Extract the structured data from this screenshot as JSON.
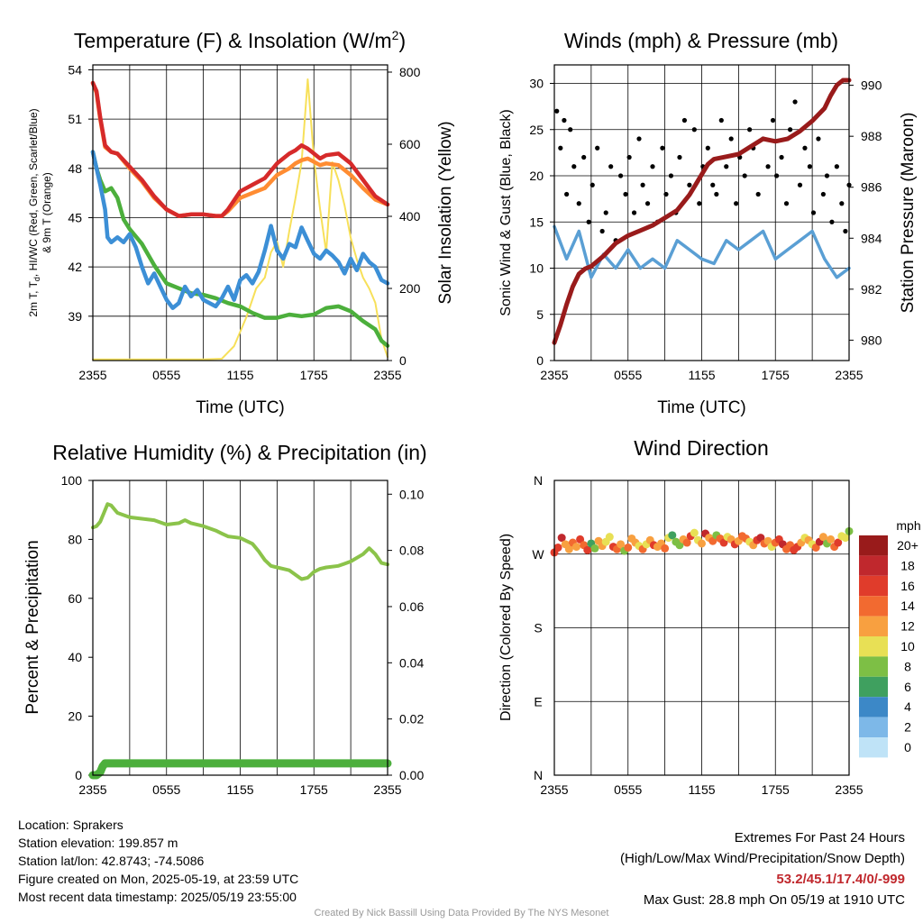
{
  "chart_data": [
    {
      "id": "temperature",
      "type": "line",
      "title": "Temperature (F) & Insolation (W/m",
      "title_sup": "2",
      "title_close": ")",
      "xlabel": "Time (UTC)",
      "ylabel_lines": [
        "2m T, T",
        "d",
        ", HI/WC (Red, Green, Scarlet/Blue)",
        "& 9m T (Orange)"
      ],
      "y2label": "Solar Insolation (Yellow)",
      "x_ticks": [
        "2355",
        "0555",
        "1155",
        "1755",
        "2355"
      ],
      "y_ticks": [
        39,
        42,
        45,
        48,
        51,
        54
      ],
      "y2_ticks": [
        0,
        200,
        400,
        600,
        800
      ],
      "ylim": [
        36.3,
        54.3
      ],
      "y2lim": [
        0,
        820
      ],
      "grid": true,
      "series": [
        {
          "color": "#f7e05a",
          "axis": "right",
          "x": [
            0,
            3,
            6,
            9,
            10.5,
            11.5,
            12.5,
            13.3,
            14,
            14.5,
            15,
            15.5,
            16,
            16.5,
            17,
            17.5,
            18,
            18.5,
            19,
            19.5,
            20,
            20.5,
            21,
            21.5,
            22,
            22.5,
            23,
            23.5,
            24
          ],
          "y": [
            3,
            3,
            3,
            3,
            5,
            40,
            120,
            200,
            230,
            300,
            330,
            260,
            360,
            450,
            550,
            780,
            560,
            420,
            300,
            550,
            500,
            430,
            340,
            280,
            230,
            200,
            160,
            60,
            10
          ]
        },
        {
          "color": "#ff8c32",
          "axis": "left",
          "x": [
            0,
            0.3,
            0.6,
            1,
            1.5,
            2,
            3,
            4,
            5,
            6,
            7,
            8,
            9,
            10,
            10.5,
            11,
            12,
            13,
            14,
            15,
            16,
            16.5,
            17,
            17.5,
            18,
            18.5,
            19,
            20,
            21,
            22,
            23,
            24
          ],
          "y": [
            53.2,
            52.6,
            51.0,
            49.3,
            49.0,
            48.9,
            48.0,
            47.2,
            46.2,
            45.5,
            45.1,
            45.2,
            45.2,
            45.1,
            45.1,
            45.4,
            46.2,
            46.5,
            46.8,
            47.6,
            48.0,
            48.3,
            48.5,
            48.6,
            48.4,
            48.2,
            48.3,
            48.2,
            47.6,
            46.8,
            46.1,
            45.8
          ]
        },
        {
          "color": "#d62a2a",
          "axis": "left",
          "x": [
            0,
            0.3,
            0.6,
            1,
            1.5,
            2,
            3,
            4,
            5,
            6,
            7,
            8,
            9,
            10,
            10.5,
            11,
            12,
            13,
            14,
            15,
            16,
            16.5,
            17,
            17.5,
            18,
            18.5,
            19,
            20,
            21,
            22,
            23,
            24
          ],
          "y": [
            53.2,
            52.7,
            51.1,
            49.4,
            49.0,
            48.9,
            48.1,
            47.3,
            46.3,
            45.5,
            45.1,
            45.2,
            45.2,
            45.1,
            45.1,
            45.5,
            46.6,
            47.0,
            47.4,
            48.3,
            48.9,
            49.1,
            49.4,
            49.2,
            48.9,
            48.6,
            48.8,
            48.9,
            48.3,
            47.3,
            46.3,
            45.8
          ]
        },
        {
          "color": "#4caf3c",
          "axis": "left",
          "x": [
            0,
            0.3,
            0.6,
            1,
            1.5,
            2,
            2.5,
            3,
            4,
            5,
            6,
            7,
            8,
            9,
            10,
            11,
            12,
            13,
            14,
            15,
            16,
            17,
            18,
            19,
            20,
            21,
            22,
            23,
            23.5,
            24
          ],
          "y": [
            49.0,
            48.0,
            47.3,
            46.6,
            46.8,
            46.2,
            44.9,
            44.3,
            43.4,
            42.1,
            41.0,
            40.7,
            40.4,
            40.3,
            40.1,
            39.8,
            39.6,
            39.2,
            38.9,
            38.9,
            39.1,
            39.0,
            39.1,
            39.5,
            39.6,
            39.3,
            38.7,
            38.2,
            37.5,
            37.2
          ]
        },
        {
          "color": "#3c8fd6",
          "axis": "left",
          "x": [
            0,
            0.3,
            0.6,
            1,
            1.2,
            1.5,
            2,
            2.5,
            3,
            3.5,
            4,
            4.5,
            5,
            5.5,
            6,
            6.5,
            7,
            7.5,
            8,
            8.5,
            9,
            9.5,
            10,
            10.5,
            11,
            11.5,
            12,
            12.5,
            13,
            13.5,
            14,
            14.5,
            15,
            15.5,
            16,
            16.5,
            17,
            17.5,
            18,
            18.5,
            19,
            19.5,
            20,
            20.5,
            21,
            21.5,
            22,
            22.5,
            23,
            23.5,
            24
          ],
          "y": [
            49.0,
            48.0,
            47.0,
            45.5,
            43.8,
            43.5,
            43.8,
            43.5,
            44.0,
            43.2,
            42.0,
            41.0,
            41.6,
            40.8,
            40.0,
            39.5,
            39.8,
            40.8,
            40.2,
            40.6,
            40.0,
            39.8,
            39.6,
            40.1,
            40.8,
            40.0,
            41.2,
            41.5,
            41.0,
            41.7,
            43.0,
            44.5,
            43.0,
            42.5,
            43.4,
            43.2,
            44.4,
            43.6,
            42.8,
            42.5,
            43.0,
            42.7,
            42.3,
            41.6,
            42.5,
            41.8,
            42.8,
            42.3,
            42.0,
            41.2,
            41.0
          ]
        }
      ]
    },
    {
      "id": "winds",
      "type": "line",
      "title": "Winds (mph) & Pressure (mb)",
      "xlabel": "Time (UTC)",
      "ylabel": "Sonic Wind & Gust (Blue, Black)",
      "y2label": "Station Pressure (Maroon)",
      "x_ticks": [
        "2355",
        "0555",
        "1155",
        "1755",
        "2355"
      ],
      "y_ticks": [
        0,
        5,
        10,
        15,
        20,
        25,
        30
      ],
      "y2_ticks": [
        980,
        982,
        984,
        986,
        988,
        990
      ],
      "ylim": [
        0,
        32
      ],
      "y2lim": [
        979.2,
        990.8
      ],
      "grid": true,
      "series": [
        {
          "color": "#5a9fd4",
          "axis": "left",
          "x": [
            0,
            1,
            2,
            3,
            4,
            5,
            6,
            7,
            8,
            9,
            10,
            11,
            12,
            13,
            14,
            15,
            16,
            17,
            18,
            19,
            20,
            21,
            22,
            23,
            24
          ],
          "y": [
            14.5,
            11,
            14,
            9,
            11.5,
            10,
            12,
            10,
            11,
            10,
            13,
            12,
            11,
            10.5,
            13,
            12,
            13,
            14,
            11,
            12,
            13,
            14,
            11,
            9,
            10
          ]
        },
        {
          "color": "#991b1b",
          "axis": "right",
          "x": [
            0,
            0.5,
            1,
            1.5,
            2,
            2.5,
            3,
            4,
            5,
            6,
            7,
            8,
            9,
            10,
            11,
            11.5,
            12,
            12.5,
            13,
            14,
            15,
            16,
            17,
            18,
            19,
            20,
            21,
            22,
            22.5,
            23,
            23.5,
            24
          ],
          "y": [
            979.9,
            980.6,
            981.4,
            982.1,
            982.6,
            982.8,
            982.9,
            983.3,
            983.8,
            984.1,
            984.3,
            984.5,
            984.8,
            985.1,
            985.7,
            986.1,
            986.5,
            986.9,
            987.1,
            987.2,
            987.3,
            987.6,
            987.9,
            987.8,
            987.9,
            988.2,
            988.6,
            989.1,
            989.6,
            990.0,
            990.2,
            990.2
          ]
        }
      ],
      "gusts": {
        "x": [
          0.2,
          0.5,
          0.8,
          1.0,
          1.3,
          1.6,
          2.0,
          2.4,
          2.8,
          3.1,
          3.5,
          3.9,
          4.2,
          4.6,
          5.0,
          5.4,
          5.8,
          6.1,
          6.5,
          6.9,
          7.2,
          7.6,
          8.0,
          8.4,
          8.8,
          9.1,
          9.5,
          9.9,
          10.2,
          10.6,
          11.0,
          11.4,
          11.8,
          12.1,
          12.5,
          12.9,
          13.2,
          13.6,
          14.0,
          14.4,
          14.8,
          15.1,
          15.5,
          15.9,
          16.2,
          16.6,
          17.0,
          17.4,
          17.8,
          18.1,
          18.5,
          18.9,
          19.2,
          19.6,
          20.0,
          20.4,
          20.8,
          21.1,
          21.5,
          21.9,
          22.2,
          22.6,
          23.0,
          23.4,
          23.7,
          24.0
        ],
        "y": [
          27,
          23,
          26,
          18,
          25,
          21,
          17,
          22,
          15,
          19,
          23,
          14,
          16,
          21,
          13,
          20,
          18,
          22,
          16,
          24,
          19,
          17,
          21,
          15,
          23,
          18,
          20,
          16,
          22,
          26,
          19,
          25,
          17,
          21,
          23,
          19,
          18,
          26,
          21,
          24,
          17,
          22,
          20,
          25,
          23,
          18,
          24,
          21,
          26,
          20,
          22,
          17,
          25,
          28,
          19,
          23,
          21,
          16,
          24,
          18,
          20,
          15,
          21,
          17,
          14,
          19
        ]
      }
    },
    {
      "id": "humidity",
      "type": "line",
      "title": "Relative Humidity (%) & Precipitation (in)",
      "xlabel": "",
      "ylabel": "Percent & Precipitation",
      "x_ticks": [
        "2355",
        "0555",
        "1155",
        "1755",
        "2355"
      ],
      "y_ticks": [
        0,
        20,
        40,
        60,
        80,
        100
      ],
      "y2_ticks": [
        "0.00",
        "0.02",
        "0.04",
        "0.06",
        "0.08",
        "0.10"
      ],
      "ylim": [
        0,
        100
      ],
      "y2lim": [
        0,
        0.1049
      ],
      "grid": true,
      "series": [
        {
          "color": "#8bc34a",
          "axis": "left",
          "x": [
            0,
            0.3,
            0.6,
            0.9,
            1.2,
            1.5,
            2,
            3,
            4,
            5,
            6,
            7,
            7.5,
            8,
            9,
            10,
            10.5,
            11,
            12,
            13,
            13.5,
            14,
            14.5,
            15,
            15.5,
            16,
            16.5,
            17,
            17.5,
            18,
            18.5,
            19,
            20,
            21,
            22,
            22.5,
            23,
            23.5,
            24
          ],
          "y": [
            84,
            84.5,
            86,
            89,
            92,
            91.5,
            89,
            87.5,
            87,
            86.5,
            85,
            85.5,
            86.5,
            85.5,
            84.5,
            83,
            82,
            81,
            80.5,
            78.5,
            76,
            73,
            71,
            70.5,
            70,
            69.5,
            68,
            66.5,
            67,
            69,
            70,
            70.5,
            71,
            72.5,
            75,
            77,
            75,
            72,
            71.5
          ]
        },
        {
          "color": "#4caf3c",
          "axis": "left",
          "x": [
            0,
            0.3,
            0.6,
            0.8,
            1.0,
            24
          ],
          "y": [
            0,
            0,
            1,
            3,
            4,
            4
          ]
        }
      ]
    },
    {
      "id": "wind_direction",
      "type": "scatter",
      "title": "Wind Direction",
      "ylabel": "Direction (Colored By Speed)",
      "x_ticks": [
        "2355",
        "0555",
        "1155",
        "1755",
        "2355"
      ],
      "y_ticks": [
        "N",
        "W",
        "S",
        "E",
        "N"
      ],
      "grid": true,
      "colorbar_title": "mph",
      "colorbar_labels": [
        "20+",
        "18",
        "16",
        "14",
        "12",
        "10",
        "8",
        "6",
        "4",
        "2",
        "0"
      ],
      "colorbar_colors": [
        "#991b1b",
        "#c0282d",
        "#e03c2b",
        "#f26a30",
        "#f8a040",
        "#e8e055",
        "#7dbf45",
        "#3fa05f",
        "#3c88c7",
        "#7db8e8",
        "#bfe3f7"
      ],
      "points": {
        "x": [
          0,
          0.3,
          0.6,
          0.9,
          1.2,
          1.5,
          1.8,
          2.1,
          2.4,
          2.7,
          3.0,
          3.3,
          3.6,
          3.9,
          4.2,
          4.5,
          4.8,
          5.1,
          5.4,
          5.7,
          6.0,
          6.3,
          6.6,
          6.9,
          7.2,
          7.5,
          7.8,
          8.1,
          8.4,
          8.7,
          9.0,
          9.3,
          9.6,
          9.9,
          10.2,
          10.5,
          10.8,
          11.1,
          11.4,
          11.7,
          12.0,
          12.3,
          12.6,
          12.9,
          13.2,
          13.5,
          13.8,
          14.1,
          14.4,
          14.7,
          15.0,
          15.3,
          15.6,
          15.9,
          16.2,
          16.5,
          16.8,
          17.1,
          17.4,
          17.7,
          18.0,
          18.3,
          18.6,
          18.9,
          19.2,
          19.5,
          19.8,
          20.1,
          20.4,
          20.7,
          21.0,
          21.3,
          21.6,
          21.9,
          22.2,
          22.5,
          22.8,
          23.1,
          23.4,
          23.7,
          24.0
        ],
        "dir": [
          272,
          278,
          290,
          282,
          276,
          284,
          279,
          288,
          281,
          275,
          283,
          277,
          286,
          280,
          285,
          291,
          279,
          276,
          282,
          274,
          278,
          289,
          284,
          280,
          276,
          282,
          287,
          281,
          279,
          283,
          277,
          290,
          293,
          285,
          281,
          288,
          284,
          292,
          296,
          287,
          283,
          295,
          290,
          286,
          293,
          289,
          284,
          291,
          288,
          282,
          286,
          292,
          289,
          285,
          281,
          287,
          290,
          283,
          286,
          279,
          284,
          288,
          282,
          276,
          281,
          275,
          279,
          284,
          290,
          287,
          282,
          278,
          285,
          291,
          283,
          288,
          279,
          284,
          292,
          290,
          298
        ],
        "speed": [
          16,
          17,
          18,
          13,
          12,
          14,
          13,
          16,
          15,
          17,
          7,
          9,
          12,
          13,
          11,
          10,
          16,
          14,
          12,
          9,
          15,
          12,
          13,
          11,
          14,
          10,
          12,
          17,
          13,
          12,
          14,
          10,
          6,
          9,
          8,
          12,
          14,
          16,
          11,
          10,
          13,
          18,
          12,
          15,
          9,
          14,
          16,
          11,
          13,
          17,
          12,
          14,
          15,
          10,
          13,
          16,
          18,
          14,
          12,
          11,
          14,
          17,
          18,
          15,
          14,
          16,
          17,
          13,
          10,
          12,
          11,
          14,
          18,
          13,
          9,
          12,
          14,
          16,
          11,
          10,
          9
        ]
      }
    }
  ],
  "footer": {
    "location": "Location: Sprakers",
    "elevation": "Station elevation: 199.857 m",
    "latlon": "Station lat/lon: 42.8743; -74.5086",
    "created": "Figure created on Mon, 2025-05-19, at 23:59 UTC",
    "recent": "Most recent data timestamp: 2025/05/19 23:55:00",
    "extremes_title": "Extremes For Past 24 Hours",
    "extremes_legend": "(High/Low/Max Wind/Precipitation/Snow Depth)",
    "extremes_values": "53.2/45.1/17.4/0/-999",
    "max_gust": "Max Gust: 28.8 mph On 05/19 at 1910 UTC",
    "credit": "Created By Nick Bassill Using Data Provided By The NYS Mesonet"
  }
}
